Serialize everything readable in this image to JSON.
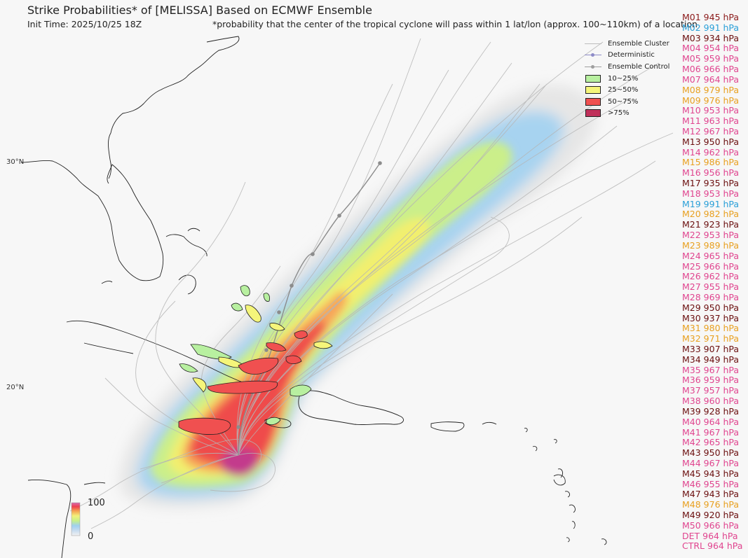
{
  "header": {
    "title": "Strike Probabilities* of [MELISSA] Based on ECMWF Ensemble",
    "init_time": "Init Time: 2025/10/25 18Z",
    "footnote": "*probability that the center of the tropical cyclone will pass within 1 lat/lon (approx. 100~110km) of a location"
  },
  "latitude_labels": [
    "30°N",
    "20°N"
  ],
  "legend": [
    {
      "label": "Ensemble Cluster",
      "kind": "line",
      "color": "#bdbdbd"
    },
    {
      "label": "Deterministic",
      "kind": "line-dot",
      "color": "#8e8cc8"
    },
    {
      "label": "Ensemble Control",
      "kind": "line-dot",
      "color": "#9e9e9e"
    },
    {
      "label": "10~25%",
      "kind": "box",
      "color": "#b8f0a0"
    },
    {
      "label": "25~50%",
      "kind": "box",
      "color": "#f5f57a"
    },
    {
      "label": "50~75%",
      "kind": "box",
      "color": "#f05050"
    },
    {
      "label": ">75%",
      "kind": "box",
      "color": "#c0305a"
    }
  ],
  "colorbar": {
    "max_label": "100",
    "min_label": "0"
  },
  "members": [
    {
      "label": "M01 945 hPa",
      "color": "#8b1a1a"
    },
    {
      "label": "M02 991 hPa",
      "color": "#2a9fd8"
    },
    {
      "label": "M03 934 hPa",
      "color": "#6b0f0f"
    },
    {
      "label": "M04 954 hPa",
      "color": "#e0458f"
    },
    {
      "label": "M05 959 hPa",
      "color": "#e0458f"
    },
    {
      "label": "M06 966 hPa",
      "color": "#e0458f"
    },
    {
      "label": "M07 964 hPa",
      "color": "#e0458f"
    },
    {
      "label": "M08 979 hPa",
      "color": "#e8a020"
    },
    {
      "label": "M09 976 hPa",
      "color": "#e8a020"
    },
    {
      "label": "M10 953 hPa",
      "color": "#e0458f"
    },
    {
      "label": "M11 963 hPa",
      "color": "#e0458f"
    },
    {
      "label": "M12 967 hPa",
      "color": "#e0458f"
    },
    {
      "label": "M13 950 hPa",
      "color": "#6b0f0f"
    },
    {
      "label": "M14 962 hPa",
      "color": "#e0458f"
    },
    {
      "label": "M15 986 hPa",
      "color": "#e8a020"
    },
    {
      "label": "M16 956 hPa",
      "color": "#e0458f"
    },
    {
      "label": "M17 935 hPa",
      "color": "#6b0f0f"
    },
    {
      "label": "M18 953 hPa",
      "color": "#e0458f"
    },
    {
      "label": "M19 991 hPa",
      "color": "#2a9fd8"
    },
    {
      "label": "M20 982 hPa",
      "color": "#e8a020"
    },
    {
      "label": "M21 923 hPa",
      "color": "#6b0f0f"
    },
    {
      "label": "M22 953 hPa",
      "color": "#e0458f"
    },
    {
      "label": "M23 989 hPa",
      "color": "#e8a020"
    },
    {
      "label": "M24 965 hPa",
      "color": "#e0458f"
    },
    {
      "label": "M25 966 hPa",
      "color": "#e0458f"
    },
    {
      "label": "M26 962 hPa",
      "color": "#e0458f"
    },
    {
      "label": "M27 955 hPa",
      "color": "#e0458f"
    },
    {
      "label": "M28 969 hPa",
      "color": "#e0458f"
    },
    {
      "label": "M29 950 hPa",
      "color": "#6b0f0f"
    },
    {
      "label": "M30 937 hPa",
      "color": "#6b0f0f"
    },
    {
      "label": "M31 980 hPa",
      "color": "#e8a020"
    },
    {
      "label": "M32 971 hPa",
      "color": "#e8a020"
    },
    {
      "label": "M33 907 hPa",
      "color": "#6b0f0f"
    },
    {
      "label": "M34 949 hPa",
      "color": "#6b0f0f"
    },
    {
      "label": "M35 967 hPa",
      "color": "#e0458f"
    },
    {
      "label": "M36 959 hPa",
      "color": "#e0458f"
    },
    {
      "label": "M37 957 hPa",
      "color": "#e0458f"
    },
    {
      "label": "M38 960 hPa",
      "color": "#e0458f"
    },
    {
      "label": "M39 928 hPa",
      "color": "#6b0f0f"
    },
    {
      "label": "M40 964 hPa",
      "color": "#e0458f"
    },
    {
      "label": "M41 967 hPa",
      "color": "#e0458f"
    },
    {
      "label": "M42 965 hPa",
      "color": "#e0458f"
    },
    {
      "label": "M43 950 hPa",
      "color": "#6b0f0f"
    },
    {
      "label": "M44 967 hPa",
      "color": "#e0458f"
    },
    {
      "label": "M45 943 hPa",
      "color": "#6b0f0f"
    },
    {
      "label": "M46 955 hPa",
      "color": "#e0458f"
    },
    {
      "label": "M47 943 hPa",
      "color": "#6b0f0f"
    },
    {
      "label": "M48 976 hPa",
      "color": "#e8a020"
    },
    {
      "label": "M49 920 hPa",
      "color": "#6b0f0f"
    },
    {
      "label": "M50 966 hPa",
      "color": "#e0458f"
    },
    {
      "label": "DET 964 hPa",
      "color": "#e0458f"
    },
    {
      "label": "CTRL 964 hPa",
      "color": "#e0458f"
    }
  ]
}
